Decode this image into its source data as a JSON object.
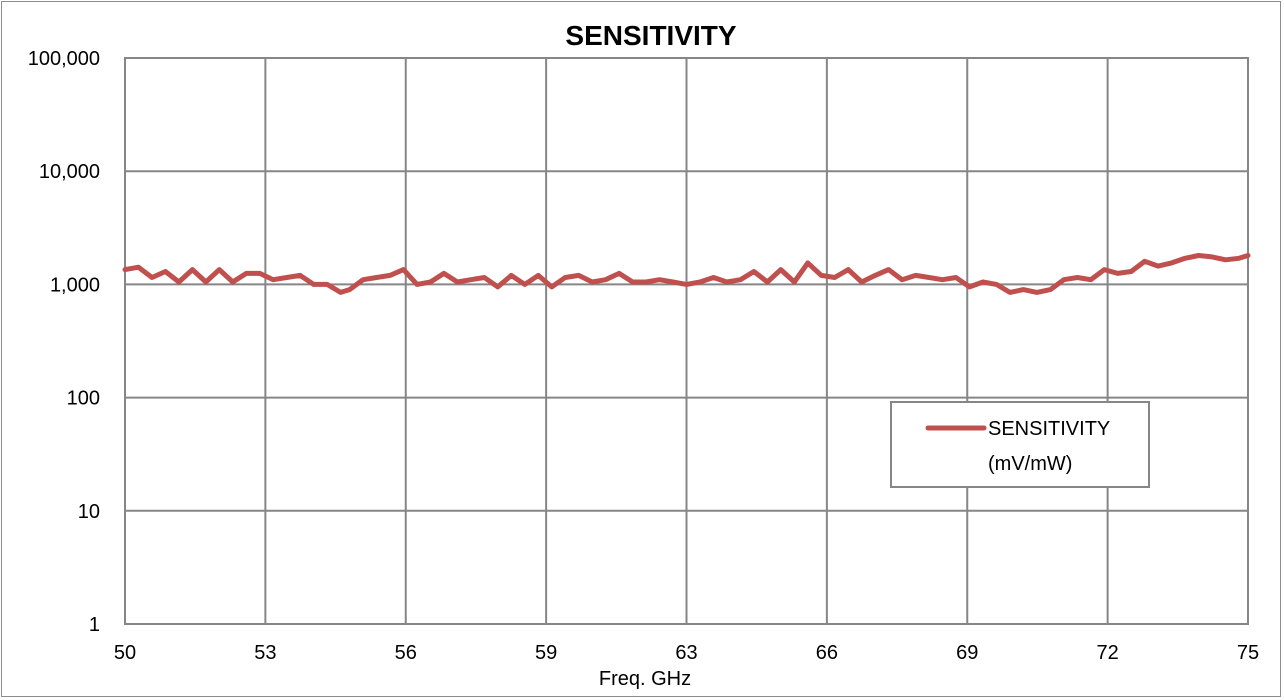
{
  "chart_data": {
    "type": "line",
    "title": "SENSITIVITY",
    "xlabel": "Freq. GHz",
    "ylabel": "",
    "y_scale": "log",
    "ylim": [
      1,
      100000
    ],
    "xlim": [
      50,
      75
    ],
    "x_ticks": [
      "50",
      "53",
      "56",
      "59",
      "63",
      "66",
      "69",
      "72",
      "75"
    ],
    "y_ticks": [
      "1",
      "10",
      "100",
      "1,000",
      "10,000",
      "100,000"
    ],
    "grid": true,
    "legend": {
      "position": "right",
      "lines": [
        "SENSITIVITY",
        "(mV/mW)"
      ]
    },
    "series": [
      {
        "name": "SENSITIVITY (mV/mW)",
        "color": "#c0504d",
        "x": [
          50.0,
          50.3,
          50.6,
          50.9,
          51.2,
          51.5,
          51.8,
          52.1,
          52.4,
          52.7,
          53.0,
          53.3,
          53.6,
          53.9,
          54.2,
          54.5,
          54.8,
          55.0,
          55.3,
          55.6,
          55.9,
          56.2,
          56.5,
          56.8,
          57.1,
          57.4,
          57.7,
          58.0,
          58.3,
          58.6,
          58.9,
          59.2,
          59.5,
          59.8,
          60.1,
          60.4,
          60.7,
          61.0,
          61.3,
          61.6,
          61.9,
          62.2,
          62.5,
          62.8,
          63.1,
          63.4,
          63.7,
          64.0,
          64.3,
          64.6,
          64.9,
          65.2,
          65.5,
          65.8,
          66.1,
          66.4,
          66.7,
          67.0,
          67.3,
          67.6,
          67.9,
          68.2,
          68.5,
          68.8,
          69.1,
          69.4,
          69.7,
          70.0,
          70.3,
          70.6,
          70.9,
          71.2,
          71.5,
          71.8,
          72.1,
          72.4,
          72.7,
          73.0,
          73.3,
          73.6,
          73.9,
          74.2,
          74.5,
          74.8,
          75.0
        ],
        "values": [
          1350,
          1420,
          1150,
          1300,
          1050,
          1350,
          1050,
          1350,
          1050,
          1250,
          1250,
          1100,
          1150,
          1200,
          1000,
          1000,
          850,
          900,
          1100,
          1150,
          1200,
          1350,
          1000,
          1050,
          1250,
          1050,
          1100,
          1150,
          950,
          1200,
          1000,
          1200,
          950,
          1150,
          1200,
          1050,
          1100,
          1250,
          1050,
          1050,
          1100,
          1050,
          1000,
          1050,
          1150,
          1050,
          1100,
          1300,
          1050,
          1350,
          1050,
          1550,
          1200,
          1150,
          1350,
          1050,
          1200,
          1350,
          1100,
          1200,
          1150,
          1100,
          1150,
          950,
          1050,
          1000,
          850,
          900,
          850,
          900,
          1100,
          1150,
          1100,
          1350,
          1250,
          1300,
          1600,
          1450,
          1550,
          1700,
          1800,
          1750,
          1650,
          1700,
          1800
        ]
      }
    ]
  }
}
